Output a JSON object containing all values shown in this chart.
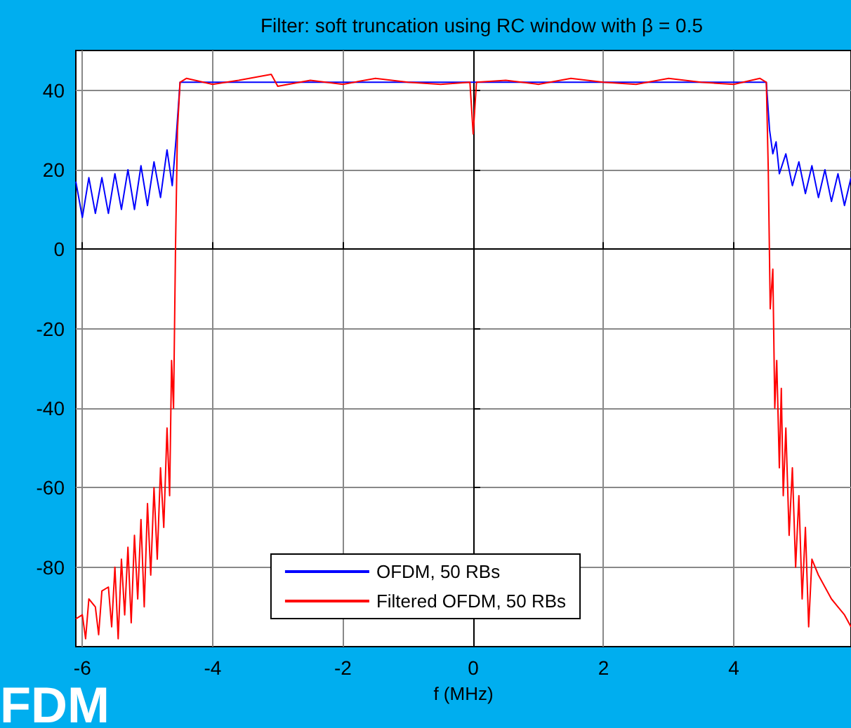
{
  "chart_data": {
    "type": "line",
    "title": "Filter: soft truncation using RC window with β = 0.5",
    "xlabel": "f (MHz)",
    "annotations": [
      "FDM"
    ],
    "xlim": [
      -6.1,
      5.8
    ],
    "xticks": [
      -6,
      -4,
      -2,
      0,
      2,
      4
    ],
    "ylim": [
      -100,
      50
    ],
    "yticks": [
      -80,
      -60,
      -40,
      -20,
      0,
      20,
      40
    ],
    "grid": true,
    "legend": "bottom",
    "marker": "none",
    "line_style": "solid",
    "series": [
      {
        "name": "OFDM, 50 RBs",
        "color": "#0000ff",
        "x": [
          -6.1,
          -6.0,
          -5.9,
          -5.8,
          -5.7,
          -5.6,
          -5.5,
          -5.4,
          -5.3,
          -5.2,
          -5.1,
          -5.0,
          -4.9,
          -4.8,
          -4.7,
          -4.62,
          -4.56,
          -4.5,
          -3,
          0,
          3,
          4.5,
          4.55,
          4.6,
          4.65,
          4.7,
          4.8,
          4.9,
          5.0,
          5.1,
          5.2,
          5.3,
          5.4,
          5.5,
          5.6,
          5.7,
          5.8
        ],
        "values": [
          17,
          8,
          18,
          9,
          18,
          9,
          19,
          10,
          20,
          10,
          21,
          11,
          22,
          13,
          25,
          16,
          28,
          42,
          42,
          42,
          42,
          42,
          30,
          24,
          27,
          19,
          24,
          16,
          22,
          14,
          21,
          13,
          20,
          12,
          19,
          11,
          18
        ]
      },
      {
        "name": "Filtered OFDM, 50 RBs",
        "color": "#ff0000",
        "x": [
          -6.1,
          -6.05,
          -6.0,
          -5.95,
          -5.9,
          -5.85,
          -5.8,
          -5.75,
          -5.7,
          -5.65,
          -5.6,
          -5.55,
          -5.5,
          -5.45,
          -5.4,
          -5.35,
          -5.3,
          -5.25,
          -5.2,
          -5.15,
          -5.1,
          -5.05,
          -5.0,
          -4.95,
          -4.9,
          -4.85,
          -4.8,
          -4.75,
          -4.7,
          -4.66,
          -4.63,
          -4.6,
          -4.57,
          -4.54,
          -4.5,
          -4.4,
          -4,
          -3.6,
          -3.1,
          -3,
          -2.5,
          -2,
          -1.5,
          -1,
          -0.5,
          -0.05,
          0,
          0.05,
          0.5,
          1,
          1.5,
          2,
          2.5,
          3,
          3.5,
          4,
          4.4,
          4.5,
          4.53,
          4.56,
          4.6,
          4.63,
          4.66,
          4.7,
          4.73,
          4.76,
          4.8,
          4.85,
          4.9,
          4.95,
          5.0,
          5.05,
          5.1,
          5.15,
          5.2,
          5.25,
          5.3,
          5.35,
          5.4,
          5.45,
          5.5,
          5.55,
          5.6,
          5.65,
          5.7,
          5.75,
          5.8
        ],
        "values": [
          -93,
          null,
          -92,
          -98,
          -88,
          null,
          -90,
          -97,
          -86,
          null,
          -85,
          -95,
          -80,
          -98,
          -78,
          -92,
          -75,
          -94,
          -72,
          -88,
          -68,
          -90,
          -64,
          -82,
          -60,
          -78,
          -55,
          -70,
          -45,
          -62,
          -28,
          -40,
          0,
          30,
          42,
          43,
          41.5,
          42.5,
          44,
          41,
          42.5,
          41.5,
          43,
          42,
          41.5,
          42,
          29,
          42,
          42.5,
          41.5,
          43,
          42,
          41.5,
          43,
          42,
          41.5,
          43,
          42,
          20,
          -15,
          -5,
          -40,
          -28,
          -55,
          -35,
          -62,
          -45,
          -72,
          -55,
          -80,
          -62,
          -88,
          -70,
          -95,
          -78,
          null,
          -82,
          null,
          -85,
          null,
          -88,
          null,
          -90,
          null,
          -92,
          null,
          -95
        ]
      }
    ]
  }
}
